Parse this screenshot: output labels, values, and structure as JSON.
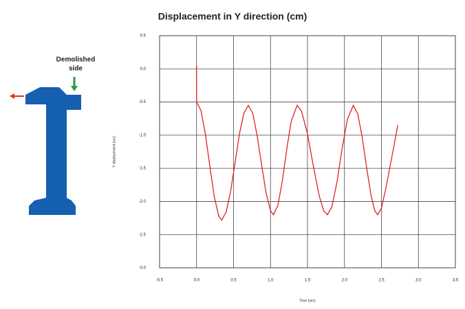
{
  "chart_data": {
    "type": "line",
    "title": "Displacement in Y direction (cm)",
    "x_label": "Time (sec)",
    "y_label": "Y displacement (cm)",
    "annotation_lines": [
      "Demolished",
      "side"
    ],
    "x": [
      0,
      0,
      0.06,
      0.12,
      0.18,
      0.24,
      0.3,
      0.34,
      0.4,
      0.46,
      0.52,
      0.58,
      0.64,
      0.7,
      0.76,
      0.82,
      0.88,
      0.94,
      1.0,
      1.04,
      1.1,
      1.16,
      1.22,
      1.28,
      1.36,
      1.42,
      1.5,
      1.58,
      1.66,
      1.72,
      1.77,
      1.83,
      1.9,
      1.97,
      2.04,
      2.12,
      2.18,
      2.24,
      2.3,
      2.36,
      2.41,
      2.45,
      2.5,
      2.56,
      2.62,
      2.68,
      2.72
    ],
    "series": [
      {
        "color": "#e02020",
        "values": [
          0.05,
          -0.5,
          -0.63,
          -0.99,
          -1.47,
          -1.93,
          -2.22,
          -2.28,
          -2.16,
          -1.85,
          -1.42,
          -0.98,
          -0.67,
          -0.55,
          -0.67,
          -1.01,
          -1.45,
          -1.87,
          -2.14,
          -2.2,
          -2.06,
          -1.69,
          -1.21,
          -0.79,
          -0.55,
          -0.64,
          -0.98,
          -1.47,
          -1.92,
          -2.14,
          -2.2,
          -2.08,
          -1.7,
          -1.19,
          -0.76,
          -0.55,
          -0.68,
          -1.03,
          -1.49,
          -1.91,
          -2.14,
          -2.2,
          -2.1,
          -1.8,
          -1.45,
          -1.1,
          -0.85
        ]
      }
    ],
    "xlim": [
      -0.5,
      3.5
    ],
    "xticks": [
      -0.5,
      {
        "value": 0,
        "label": "0.0"
      },
      0.5,
      {
        "value": 1,
        "label": "1.0"
      },
      1.5,
      {
        "value": 2,
        "label": "2.0"
      },
      2.5,
      {
        "value": 3,
        "label": "3.0"
      },
      3.5
    ],
    "ylim": [
      -3,
      0.5
    ],
    "yticks": [
      0.5,
      {
        "value": 0,
        "label": "0.0"
      },
      -0.5,
      {
        "value": -1,
        "label": "-1.0"
      },
      -1.5,
      {
        "value": -2,
        "label": "-2.0"
      },
      -2.5,
      {
        "value": -3,
        "label": "-3.0"
      }
    ],
    "grid": true
  }
}
